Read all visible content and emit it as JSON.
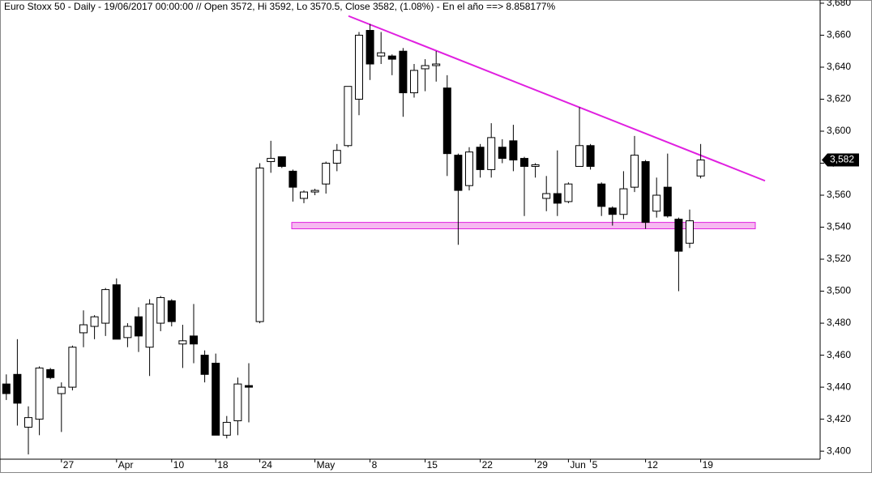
{
  "chart_data": {
    "type": "candlestick",
    "title": "Euro Stoxx 50 - Daily - 19/06/2017 00:00:00 // Open 3572, Hi 3592, Lo 3570.5, Close 3582, (1.08%) - En el año ==> 8.858177%",
    "categories": [
      null,
      null,
      null,
      null,
      null,
      "27",
      null,
      null,
      null,
      null,
      "Apr",
      null,
      null,
      null,
      null,
      "10",
      null,
      null,
      null,
      "18",
      null,
      null,
      null,
      "24",
      null,
      null,
      null,
      null,
      "May",
      null,
      null,
      null,
      null,
      "8",
      null,
      null,
      null,
      null,
      "15",
      null,
      null,
      null,
      null,
      "22",
      null,
      null,
      null,
      null,
      "29",
      null,
      null,
      "Jun",
      null,
      "5",
      null,
      null,
      null,
      null,
      "12",
      null,
      null,
      null,
      null,
      "19"
    ],
    "open": [
      3442,
      3448,
      3415,
      3420,
      3451,
      3436,
      3440,
      3474,
      3478,
      3480,
      3504,
      3471,
      3484,
      3465,
      3480,
      3494,
      3467,
      3472,
      3460,
      3455,
      3410,
      3419,
      3441,
      3481,
      3581,
      3584,
      3575,
      3558,
      3562,
      3567,
      3580,
      3591,
      3620,
      3663,
      3647,
      3647,
      3650,
      3624,
      3639,
      3641,
      3627,
      3585,
      3566,
      3590,
      3576,
      3590,
      3594,
      3583,
      3578,
      3558,
      3561,
      3556,
      3578,
      3591,
      3567,
      3552,
      3548,
      3565,
      3581,
      3550,
      3565,
      3545,
      3530,
      3572
    ],
    "high": [
      3448,
      3470,
      3428,
      3453,
      3452,
      3443,
      3466,
      3488,
      3485,
      3502,
      3508,
      3480,
      3490,
      3495,
      3497,
      3495,
      3479,
      3492,
      3463,
      3461,
      3422,
      3446,
      3455,
      3580,
      3594,
      3584,
      3576,
      3563,
      3564,
      3581,
      3592,
      3628,
      3662,
      3667,
      3662,
      3648,
      3652,
      3642,
      3645,
      3650,
      3635,
      3586,
      3590,
      3592,
      3605,
      3595,
      3604,
      3584,
      3580,
      3572,
      3588,
      3568,
      3615,
      3592,
      3568,
      3553,
      3575,
      3597,
      3582,
      3571,
      3586,
      3546,
      3551,
      3592
    ],
    "low": [
      3432,
      3416,
      3398,
      3410,
      3445,
      3412,
      3438,
      3465,
      3470,
      3472,
      3470,
      3465,
      3462,
      3447,
      3475,
      3478,
      3452,
      3455,
      3443,
      3410,
      3408,
      3410,
      3418,
      3480,
      3574,
      3577,
      3556,
      3555,
      3560,
      3561,
      3575,
      3590,
      3610,
      3632,
      3642,
      3635,
      3609,
      3621,
      3625,
      3631,
      3572,
      3529,
      3563,
      3571,
      3571,
      3580,
      3575,
      3547,
      3571,
      3550,
      3547,
      3555,
      3578,
      3576,
      3547,
      3541,
      3545,
      3562,
      3539,
      3546,
      3546,
      3500,
      3527,
      3570.5
    ],
    "close": [
      3436,
      3430,
      3421,
      3452,
      3446,
      3440,
      3465,
      3479,
      3484,
      3501,
      3470,
      3478,
      3472,
      3492,
      3496,
      3481,
      3469,
      3467,
      3448,
      3410,
      3418,
      3442,
      3440,
      3577,
      3583,
      3578,
      3565,
      3562,
      3563,
      3580,
      3588,
      3628,
      3660,
      3642,
      3649,
      3645,
      3624,
      3638,
      3641,
      3642,
      3586,
      3563,
      3587,
      3576,
      3596,
      3583,
      3582,
      3578,
      3579,
      3561,
      3555,
      3567,
      3591,
      3578,
      3553,
      3548,
      3564,
      3585,
      3543,
      3560,
      3547,
      3525,
      3544,
      3582
    ],
    "ylim": [
      3395,
      3682
    ],
    "yticks": [
      {
        "value": 3400,
        "label": "3,400"
      },
      {
        "value": 3420,
        "label": "3,420"
      },
      {
        "value": 3440,
        "label": "3,440"
      },
      {
        "value": 3460,
        "label": "3,460"
      },
      {
        "value": 3480,
        "label": "3,480"
      },
      {
        "value": 3500,
        "label": "3,500"
      },
      {
        "value": 3520,
        "label": "3,520"
      },
      {
        "value": 3540,
        "label": "3,540"
      },
      {
        "value": 3560,
        "label": "3,560"
      },
      {
        "value": 3580,
        "label": "3,580"
      },
      {
        "value": 3600,
        "label": "3,600"
      },
      {
        "value": 3620,
        "label": "3,620"
      },
      {
        "value": 3640,
        "label": "3,640"
      },
      {
        "value": 3660,
        "label": "3,660"
      },
      {
        "value": 3680,
        "label": "3,680"
      }
    ],
    "last_price": {
      "value": 3582,
      "label": "3,582"
    },
    "trendline": {
      "y": [
        3672,
        3569
      ],
      "color": "#e020e0"
    },
    "support_zone": {
      "y": [
        3539,
        3543
      ],
      "color": "#e020e0"
    }
  }
}
